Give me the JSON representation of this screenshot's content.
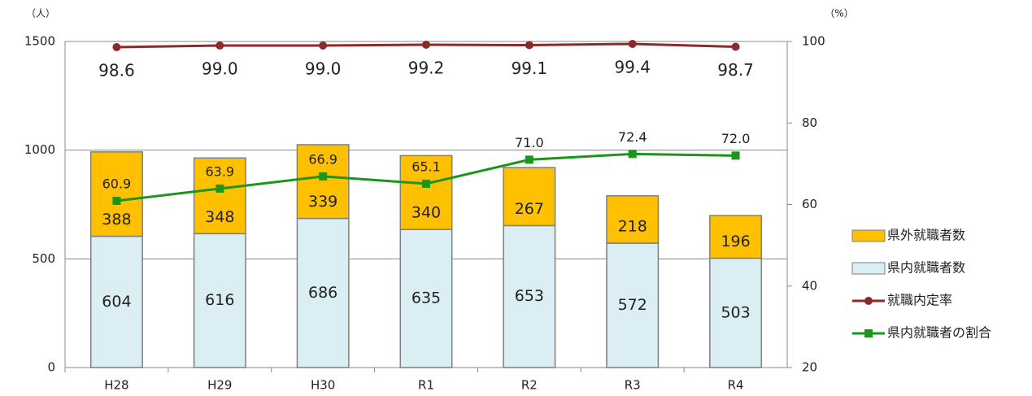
{
  "chart_data": {
    "type": "bar-line",
    "y_unit": "（人）",
    "y2_unit": "（%）",
    "categories": [
      "H28",
      "H29",
      "H30",
      "R1",
      "R2",
      "R3",
      "R4"
    ],
    "series": [
      {
        "name": "県内就職者数",
        "type": "bar",
        "color": "#daeef3",
        "values": [
          604,
          616,
          686,
          635,
          653,
          572,
          503
        ]
      },
      {
        "name": "県外就職者数",
        "type": "bar",
        "color": "#ffc000",
        "values": [
          388,
          348,
          339,
          340,
          267,
          218,
          196
        ]
      },
      {
        "name": "就職内定率",
        "type": "line",
        "axis": "y2",
        "marker": "circle",
        "color": "#8b2a2a",
        "values": [
          98.6,
          99.0,
          99.0,
          99.2,
          99.1,
          99.4,
          98.7
        ],
        "value_labels": [
          "98.6",
          "99.0",
          "99.0",
          "99.2",
          "99.1",
          "99.4",
          "98.7"
        ]
      },
      {
        "name": "県内就職者の割合",
        "type": "line",
        "axis": "y2",
        "marker": "square",
        "color": "#1a961a",
        "values": [
          60.9,
          63.9,
          66.9,
          65.1,
          71.0,
          72.4,
          72.0
        ],
        "value_labels": [
          "60.9",
          "63.9",
          "66.9",
          "65.1",
          "71.0",
          "72.4",
          "72.0"
        ]
      }
    ],
    "ylim": [
      0,
      1500
    ],
    "yticks": [
      0,
      500,
      1000,
      1500
    ],
    "y2lim": [
      20,
      100
    ],
    "y2ticks": [
      20,
      40,
      60,
      80,
      100
    ],
    "grid": true,
    "legend": "right"
  }
}
